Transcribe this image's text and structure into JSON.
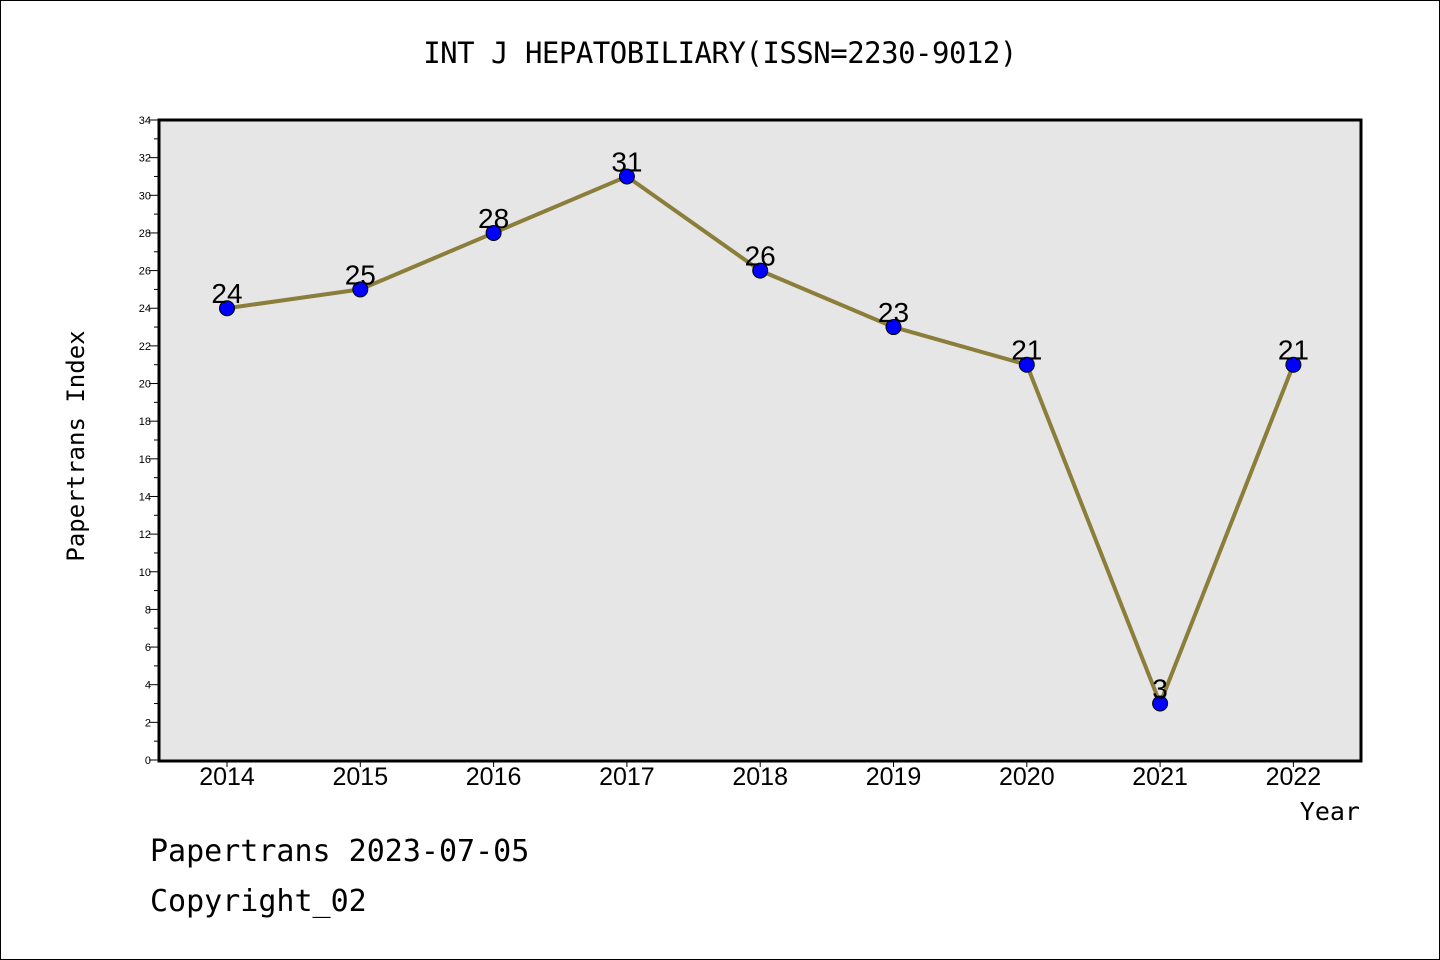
{
  "chart_data": {
    "type": "line",
    "title": "INT J HEPATOBILIARY(ISSN=2230-9012)",
    "xlabel": "Year",
    "ylabel": "Papertrans Index",
    "categories": [
      "2014",
      "2015",
      "2016",
      "2017",
      "2018",
      "2019",
      "2020",
      "2021",
      "2022"
    ],
    "series": [
      {
        "values": [
          24,
          25,
          28,
          31,
          26,
          23,
          21,
          3,
          21
        ]
      }
    ],
    "data_labels": [
      "24",
      "25",
      "28",
      "31",
      "26",
      "23",
      "21",
      "3",
      "21"
    ],
    "ylim": [
      0,
      34
    ],
    "yticks": [
      "0",
      "2",
      "4",
      "6",
      "8",
      "10",
      "12",
      "14",
      "16",
      "18",
      "20",
      "22",
      "24",
      "26",
      "28",
      "30",
      "32",
      "34"
    ],
    "grid": false,
    "legend": "none",
    "colors": {
      "line": "#8b7d3a",
      "marker": "#0000ff",
      "plot_background": "#e6e6e6"
    }
  },
  "footer": {
    "date_line": "Papertrans 2023-07-05",
    "copyright": "Copyright_02"
  }
}
